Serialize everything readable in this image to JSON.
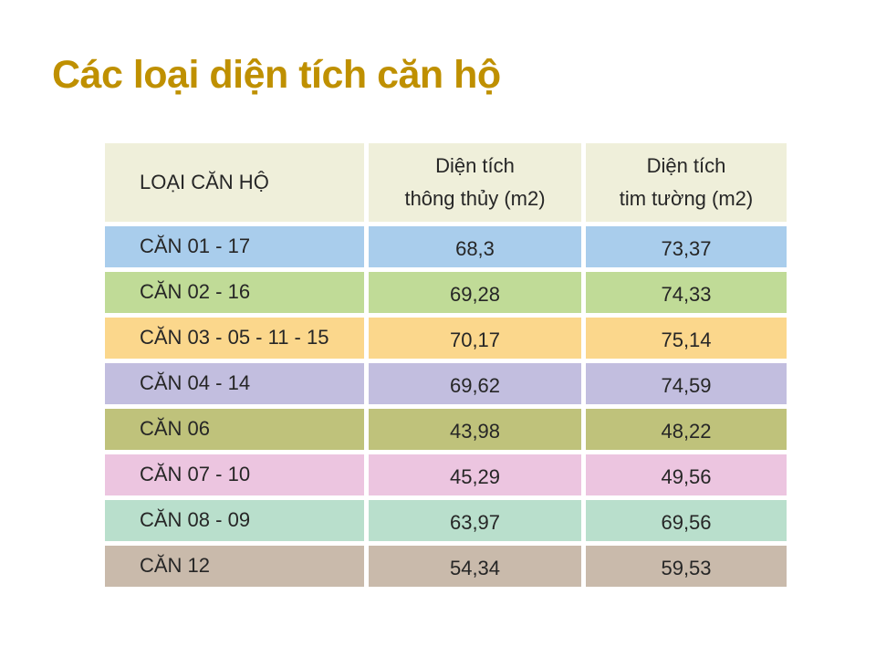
{
  "slide": {
    "title": "Các loại diện tích căn hộ"
  },
  "colors": {
    "title_text": "#BF9000",
    "header_bg": "#EFEFDA",
    "body_text": "#262626",
    "background": "#FFFFFF"
  },
  "table": {
    "header": {
      "col1": "LOẠI CĂN HỘ",
      "col2_line1": "Diện tích",
      "col2_line2": "thông thủy (m2)",
      "col3_line1": "Diện tích",
      "col3_line2": "tim tường (m2)"
    },
    "rows": [
      {
        "label": "CĂN 01 - 17",
        "thong_thuy": "68,3",
        "tim_tuong": "73,37",
        "color": "#A9CDEC"
      },
      {
        "label": "CĂN 02 - 16",
        "thong_thuy": "69,28",
        "tim_tuong": "74,33",
        "color": "#C0DB97"
      },
      {
        "label": "CĂN 03 - 05 - 11 - 15",
        "thong_thuy": "70,17",
        "tim_tuong": "75,14",
        "color": "#FBD78C"
      },
      {
        "label": "CĂN 04 - 14",
        "thong_thuy": "69,62",
        "tim_tuong": "74,59",
        "color": "#C2BEDF"
      },
      {
        "label": "CĂN 06",
        "thong_thuy": "43,98",
        "tim_tuong": "48,22",
        "color": "#BFC27B"
      },
      {
        "label": "CĂN 07 - 10",
        "thong_thuy": "45,29",
        "tim_tuong": "49,56",
        "color": "#ECC5E0"
      },
      {
        "label": "CĂN 08 - 09",
        "thong_thuy": "63,97",
        "tim_tuong": "69,56",
        "color": "#B9DFCC"
      },
      {
        "label": "CĂN 12",
        "thong_thuy": "54,34",
        "tim_tuong": "59,53",
        "color": "#C9BAAB"
      }
    ]
  }
}
